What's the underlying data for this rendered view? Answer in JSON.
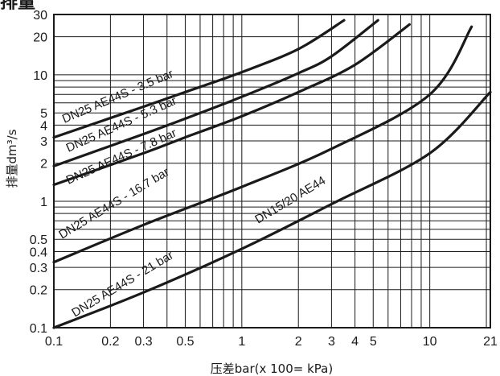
{
  "chart_data": {
    "type": "line",
    "title": "排量",
    "xlabel": "压差bar(x 100= kPa)",
    "ylabel": "排量dm³/s",
    "x_scale": "log",
    "y_scale": "log",
    "xlim": [
      0.1,
      21
    ],
    "ylim": [
      0.1,
      30
    ],
    "x_ticks": [
      0.1,
      0.2,
      0.3,
      0.5,
      1,
      2,
      3,
      4,
      5,
      10,
      21
    ],
    "x_tick_labels": [
      "0.1",
      "0.2",
      "0.3",
      "0.5",
      "1",
      "2",
      "3",
      "4",
      "5",
      "10",
      "21"
    ],
    "y_ticks": [
      0.1,
      0.2,
      0.3,
      0.4,
      0.5,
      1,
      2,
      3,
      4,
      5,
      10,
      20,
      30
    ],
    "y_tick_labels": [
      "0.1",
      "0.2",
      "0.3",
      "0.4",
      "0.5",
      "1",
      "2",
      "3",
      "4",
      "5",
      "10",
      "20",
      "30"
    ],
    "x_grid": [
      0.1,
      0.2,
      0.3,
      0.4,
      0.5,
      0.6,
      0.7,
      0.8,
      0.9,
      1,
      2,
      3,
      4,
      5,
      6,
      7,
      8,
      9,
      10,
      20
    ],
    "y_grid": [
      0.1,
      0.2,
      0.3,
      0.4,
      0.5,
      0.6,
      0.7,
      0.8,
      0.9,
      1,
      2,
      3,
      4,
      5,
      6,
      7,
      8,
      9,
      10,
      20,
      30
    ],
    "grid": true,
    "series": [
      {
        "name": "DN25 AE44S - 3.5 bar",
        "x": [
          0.1,
          0.3,
          0.5,
          1,
          2,
          3.5
        ],
        "y": [
          3.2,
          5.6,
          7.3,
          10.5,
          16,
          27
        ]
      },
      {
        "name": "DN25 AE44S - 5.3 bar",
        "x": [
          0.1,
          0.3,
          0.5,
          1,
          2,
          3,
          5.3
        ],
        "y": [
          1.9,
          3.4,
          4.5,
          6.7,
          10.3,
          14,
          27
        ]
      },
      {
        "name": "DN25 AE44S - 7.8 bar",
        "x": [
          0.1,
          0.3,
          0.5,
          1,
          2,
          4,
          7.8
        ],
        "y": [
          1.35,
          2.4,
          3.2,
          4.7,
          7.3,
          12,
          25
        ]
      },
      {
        "name": "DN25 AE44S - 16.7 bar",
        "x": [
          0.1,
          0.3,
          1,
          3,
          10,
          16.7
        ],
        "y": [
          0.33,
          0.65,
          1.3,
          2.6,
          7,
          24
        ]
      },
      {
        "name": "DN25 AE44S - 21 bar",
        "x": [
          0.1,
          0.3,
          1,
          3,
          10,
          21
        ],
        "y": [
          0.1,
          0.19,
          0.42,
          0.95,
          2.4,
          7.3
        ]
      }
    ],
    "labels": [
      "DN25 AE44S - 3.5 bar",
      "DN25 AE44S - 5.3 bar",
      "DN25 AE44S - 7.8 bar",
      "DN25 AE44S - 16.7 bar",
      "DN25 AE44S - 21 bar",
      "DN15/20 AE44"
    ],
    "colors": {
      "line": "#1a1a1a",
      "grid": "#1a1a1a",
      "background": "#ffffff"
    }
  }
}
